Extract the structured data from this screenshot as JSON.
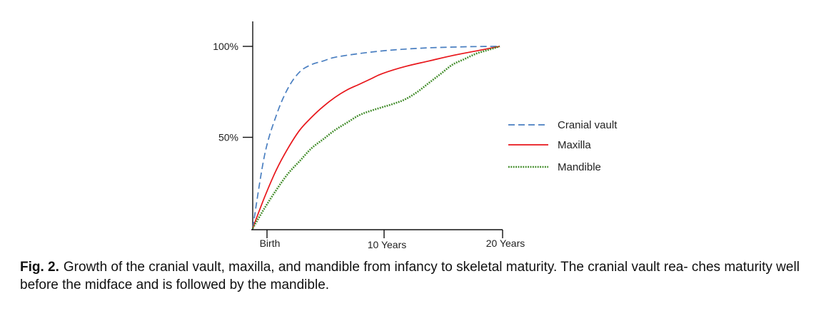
{
  "chart_data": {
    "type": "line",
    "title": "",
    "xlabel": "",
    "ylabel": "",
    "xlim": [
      -1,
      20
    ],
    "ylim": [
      0,
      100
    ],
    "x_ticks": [
      {
        "value": 0,
        "label": "Birth"
      },
      {
        "value": 10,
        "label": "10 Years"
      },
      {
        "value": 20,
        "label": "20 Years"
      }
    ],
    "y_ticks": [
      {
        "value": 50,
        "label": "50%"
      },
      {
        "value": 100,
        "label": "100%"
      }
    ],
    "grid": false,
    "legend_position": "right",
    "series": [
      {
        "name": "Cranial vault",
        "color": "#4a7fc1",
        "dash": "dashed",
        "x": [
          -1,
          0,
          1,
          2,
          3,
          4,
          5,
          6,
          8,
          10,
          12,
          14,
          16,
          18,
          20
        ],
        "y": [
          0,
          40,
          62,
          77,
          86,
          90,
          92,
          94,
          96,
          97.5,
          98.5,
          99.2,
          99.6,
          99.9,
          100
        ]
      },
      {
        "name": "Maxilla",
        "color": "#e8161b",
        "dash": "solid",
        "x": [
          -1,
          0,
          1,
          2,
          3,
          4,
          5,
          6,
          7,
          8,
          9,
          10,
          12,
          14,
          16,
          18,
          20
        ],
        "y": [
          0,
          17,
          32,
          44,
          54,
          61,
          67,
          72,
          76,
          79,
          82,
          85,
          89,
          92,
          95,
          97.5,
          100
        ]
      },
      {
        "name": "Mandible",
        "color": "#3e8a26",
        "dash": "dotted",
        "x": [
          -1,
          0,
          1,
          2,
          3,
          4,
          5,
          6,
          7,
          8,
          9,
          10,
          11,
          12,
          13,
          14,
          15,
          16,
          17,
          18,
          19,
          20
        ],
        "y": [
          0,
          11,
          21,
          30,
          37,
          44,
          49,
          54,
          58,
          62,
          64.5,
          66.5,
          68.5,
          71,
          75,
          80,
          85,
          90,
          93,
          96,
          98,
          100
        ]
      }
    ]
  },
  "caption": {
    "label": "Fig. 2.",
    "text": "Growth of the cranial vault, maxilla, and mandible from infancy to skeletal maturity. The cranial vault rea- ches maturity well before the midface and is followed by the mandible."
  }
}
